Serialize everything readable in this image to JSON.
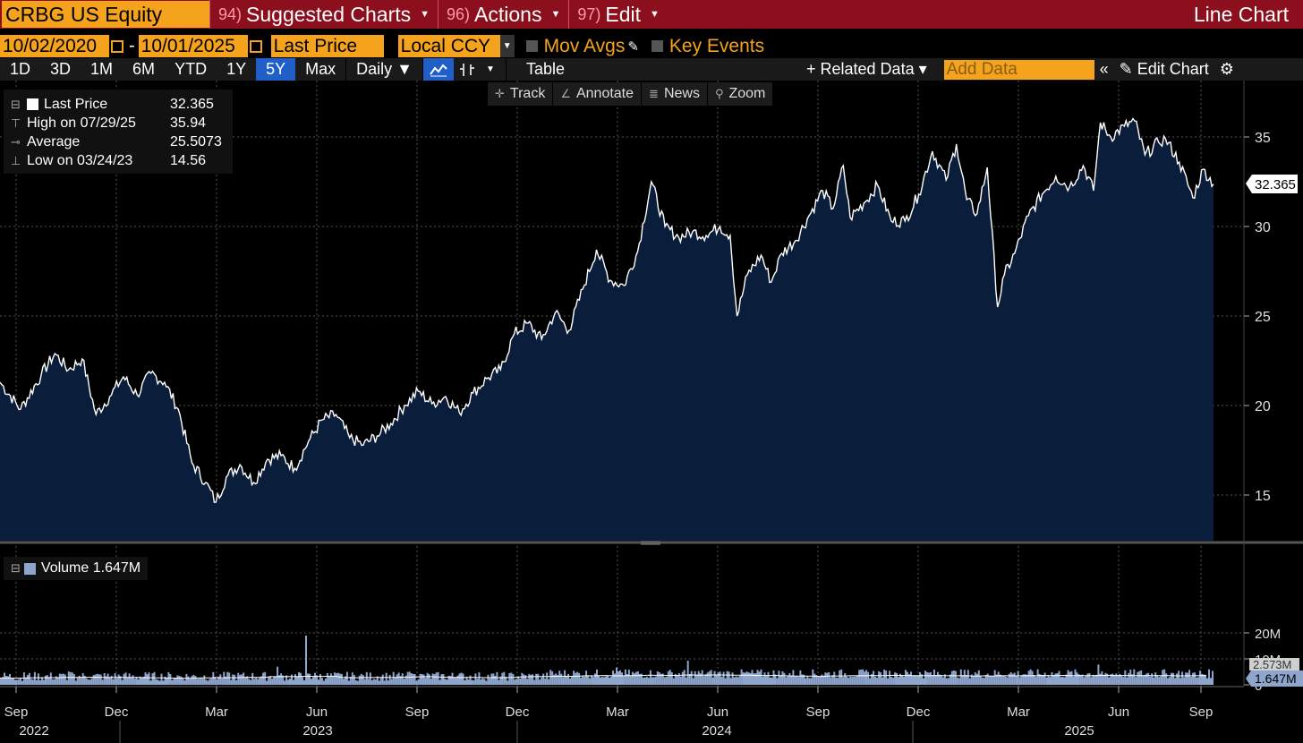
{
  "header": {
    "ticker": "CRBG US Equity",
    "menu": [
      {
        "num": "94)",
        "label": "Suggested Charts"
      },
      {
        "num": "96)",
        "label": "Actions"
      },
      {
        "num": "97)",
        "label": "Edit"
      }
    ],
    "title": "Line Chart"
  },
  "daterow": {
    "start_date": "10/02/2020",
    "end_date": "10/01/2025",
    "separator": "-",
    "field": "Last Price",
    "currency": "Local CCY",
    "mov_avgs": "Mov Avgs",
    "key_events": "Key Events"
  },
  "toolbar": {
    "periods": [
      "1D",
      "3D",
      "1M",
      "6M",
      "YTD",
      "1Y",
      "5Y",
      "Max"
    ],
    "active_period": "5Y",
    "frequency": "Daily ▼",
    "table": "Table",
    "related_data": "+ Related Data ▾",
    "add_data_placeholder": "Add Data",
    "edit_chart": "Edit Chart"
  },
  "toolbox": {
    "track": "Track",
    "annotate": "Annotate",
    "news": "News",
    "zoom": "Zoom"
  },
  "legend": {
    "last_label": "Last Price",
    "last_value": "32.365",
    "high_label": "High on 07/29/25",
    "high_value": "35.94",
    "avg_label": "Average",
    "avg_value": "25.5073",
    "low_label": "Low on 03/24/23",
    "low_value": "14.56"
  },
  "volume_legend": {
    "label": "Volume",
    "value": "1.647M"
  },
  "colors": {
    "accent": "#f5a21d",
    "topbar": "#8c0f1e",
    "area": "#0a1e3c",
    "volume": "#8ea6cc",
    "active": "#1f5fc7"
  },
  "chart_data": {
    "type": "area",
    "price": {
      "yticks": [
        "15",
        "20",
        "25",
        "30",
        "35"
      ],
      "last_label": "32.365",
      "points": [
        [
          0,
          21.3
        ],
        [
          3,
          19.8
        ],
        [
          6,
          21.7
        ],
        [
          8,
          22.9
        ],
        [
          10,
          22.0
        ],
        [
          12,
          22.6
        ],
        [
          14,
          19.5
        ],
        [
          16,
          20.5
        ],
        [
          18,
          21.6
        ],
        [
          20,
          20.6
        ],
        [
          22,
          21.8
        ],
        [
          24,
          21.3
        ],
        [
          26,
          19.8
        ],
        [
          28,
          16.8
        ],
        [
          30,
          15.7
        ],
        [
          31.5,
          14.6
        ],
        [
          33,
          16.0
        ],
        [
          35,
          16.7
        ],
        [
          37,
          15.7
        ],
        [
          39,
          17.0
        ],
        [
          41,
          17.2
        ],
        [
          43,
          16.5
        ],
        [
          45,
          18.0
        ],
        [
          47,
          19.2
        ],
        [
          49,
          19.5
        ],
        [
          51,
          18.2
        ],
        [
          53,
          17.8
        ],
        [
          55,
          18.3
        ],
        [
          57,
          19.0
        ],
        [
          59,
          20.0
        ],
        [
          61,
          20.8
        ],
        [
          63,
          20.1
        ],
        [
          65,
          20.5
        ],
        [
          67,
          19.6
        ],
        [
          69,
          20.7
        ],
        [
          71,
          21.5
        ],
        [
          73,
          22.0
        ],
        [
          75,
          24.0
        ],
        [
          77,
          24.6
        ],
        [
          79,
          23.7
        ],
        [
          81,
          25.2
        ],
        [
          83,
          24.2
        ],
        [
          85,
          26.5
        ],
        [
          87,
          28.7
        ],
        [
          89,
          27.0
        ],
        [
          91,
          26.7
        ],
        [
          93,
          28.6
        ],
        [
          95,
          32.5
        ],
        [
          97,
          30.0
        ],
        [
          99,
          29.4
        ],
        [
          101,
          29.7
        ],
        [
          103,
          29.5
        ],
        [
          105,
          30.0
        ],
        [
          106.5,
          29.5
        ],
        [
          107.5,
          25.0
        ],
        [
          109,
          27.3
        ],
        [
          111,
          28.4
        ],
        [
          112.5,
          26.9
        ],
        [
          114,
          28.5
        ],
        [
          116,
          29.2
        ],
        [
          118,
          30.6
        ],
        [
          120,
          32.0
        ],
        [
          121.5,
          31.0
        ],
        [
          123,
          33.4
        ],
        [
          124,
          30.5
        ],
        [
          126,
          31.3
        ],
        [
          128,
          32.3
        ],
        [
          130,
          30.3
        ],
        [
          132,
          30.3
        ],
        [
          134,
          31.8
        ],
        [
          136,
          34.2
        ],
        [
          138,
          32.6
        ],
        [
          139.5,
          34.6
        ],
        [
          141,
          31.5
        ],
        [
          142.5,
          30.7
        ],
        [
          144,
          33.3
        ],
        [
          145.5,
          25.5
        ],
        [
          146.5,
          27.3
        ],
        [
          148,
          28.5
        ],
        [
          150,
          30.6
        ],
        [
          152,
          31.8
        ],
        [
          154,
          32.8
        ],
        [
          156,
          32.2
        ],
        [
          158,
          33.4
        ],
        [
          159.5,
          32.0
        ],
        [
          160.5,
          35.8
        ],
        [
          162,
          35.0
        ],
        [
          164,
          35.6
        ],
        [
          165.5,
          35.9
        ],
        [
          167,
          34.0
        ],
        [
          169,
          34.7
        ],
        [
          170,
          34.9
        ],
        [
          172,
          33.6
        ],
        [
          174,
          31.6
        ],
        [
          175.5,
          33.2
        ],
        [
          177,
          32.365
        ]
      ]
    },
    "volume": {
      "yticks": [
        "20M",
        "10M",
        "0"
      ],
      "last_label": "1.647M",
      "overlay_label": "2.573M"
    },
    "x_ticks": [
      "Sep",
      "Dec",
      "Mar",
      "Jun",
      "Sep",
      "Dec",
      "Mar",
      "Jun",
      "Sep",
      "Dec",
      "Mar",
      "Jun",
      "Sep"
    ],
    "years": [
      "2022",
      "2023",
      "2024",
      "2025"
    ]
  }
}
